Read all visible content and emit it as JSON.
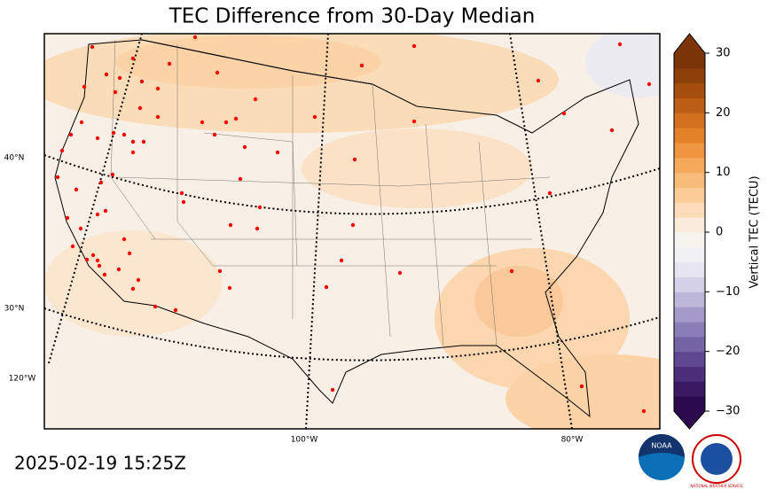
{
  "title": "TEC Difference from 30-Day Median",
  "timestamp": "2025-02-19 15:25Z",
  "map": {
    "lat_labels": [
      "40°N",
      "30°N"
    ],
    "lon_labels": [
      "120°W",
      "100°W",
      "80°W"
    ]
  },
  "colorbar": {
    "label": "Vertical TEC (TECU)",
    "range": [
      -30,
      30
    ],
    "ticks": [
      {
        "value": -30,
        "label": "−30"
      },
      {
        "value": -20,
        "label": "−20"
      },
      {
        "value": -10,
        "label": "−10"
      },
      0,
      10,
      20,
      30
    ]
  },
  "logos": [
    "NOAA",
    "NATIONAL WEATHER SERVICE"
  ]
}
